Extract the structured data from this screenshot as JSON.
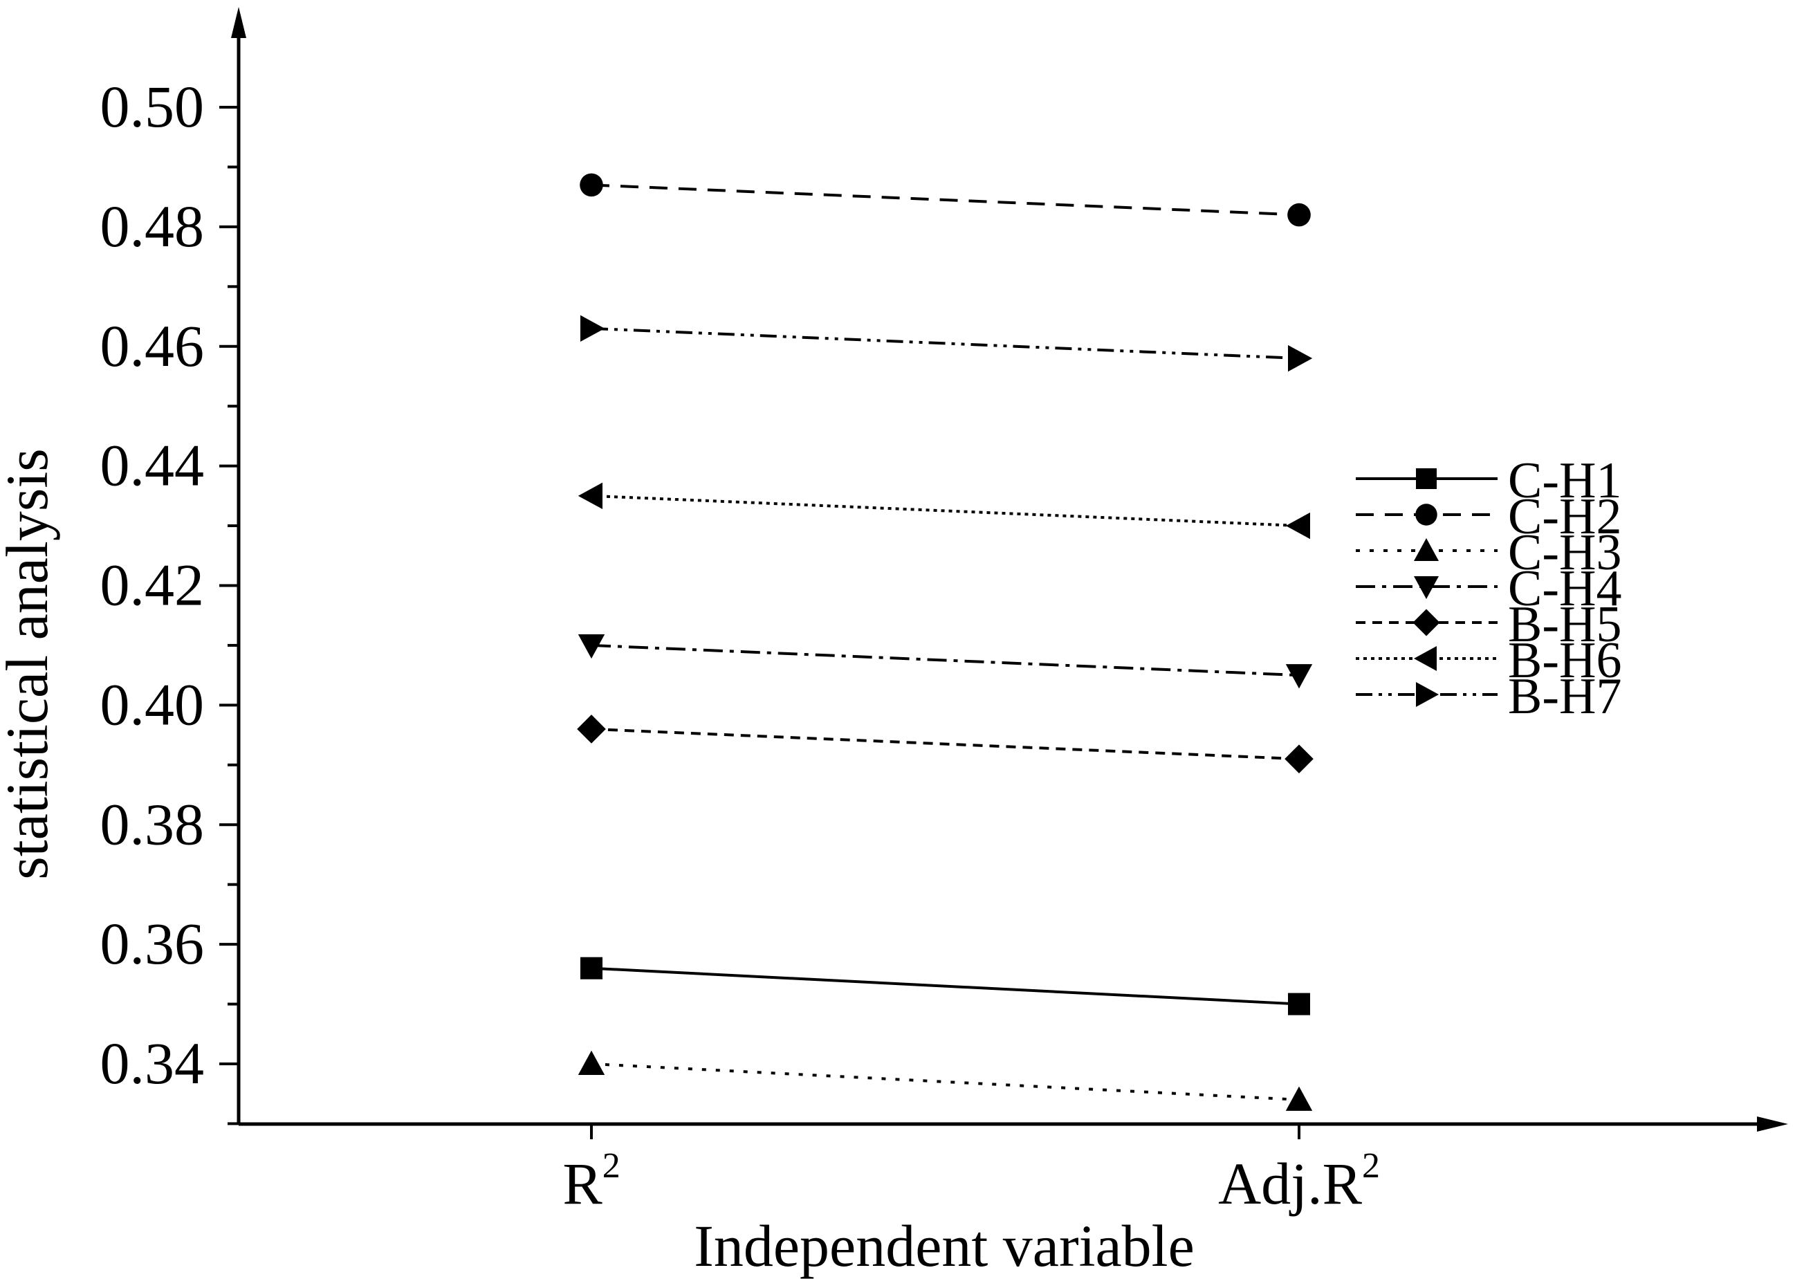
{
  "chart_data": {
    "type": "line",
    "title": "",
    "xlabel": "Independent variable",
    "ylabel": "statistical analysis",
    "categories": [
      {
        "base": "R",
        "sup": "2"
      },
      {
        "base": "Adj.R",
        "sup": "2"
      }
    ],
    "ylim": [
      0.33,
      0.515
    ],
    "y_ticks": [
      "0.34",
      "0.36",
      "0.38",
      "0.40",
      "0.42",
      "0.44",
      "0.46",
      "0.48",
      "0.50"
    ],
    "grid": false,
    "legend_position": "right",
    "series": [
      {
        "name": "C-H1",
        "values": [
          0.356,
          0.35
        ],
        "marker": "square",
        "dash": "solid"
      },
      {
        "name": "C-H2",
        "values": [
          0.487,
          0.482
        ],
        "marker": "circle",
        "dash": "dash"
      },
      {
        "name": "C-H3",
        "values": [
          0.34,
          0.334
        ],
        "marker": "triangle-up",
        "dash": "dot"
      },
      {
        "name": "C-H4",
        "values": [
          0.41,
          0.405
        ],
        "marker": "triangle-down",
        "dash": "dashdot"
      },
      {
        "name": "B-H5",
        "values": [
          0.396,
          0.391
        ],
        "marker": "diamond",
        "dash": "shortdash"
      },
      {
        "name": "B-H6",
        "values": [
          0.435,
          0.43
        ],
        "marker": "triangle-left",
        "dash": "densedot"
      },
      {
        "name": "B-H7",
        "values": [
          0.463,
          0.458
        ],
        "marker": "triangle-right",
        "dash": "dashdotdot"
      }
    ],
    "colors": {
      "line": "#000000",
      "background": "#ffffff"
    }
  }
}
